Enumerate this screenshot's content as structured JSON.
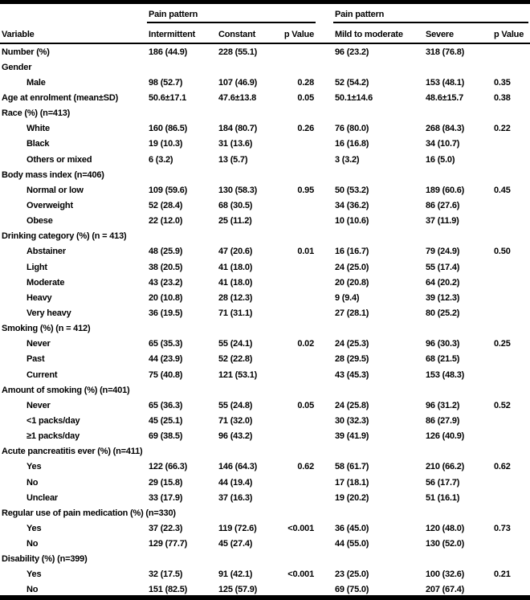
{
  "table": {
    "header": {
      "variable": "Variable",
      "group1": "Pain pattern",
      "group2": "Pain pattern",
      "columns": [
        "Intermittent",
        "Constant",
        "p Value",
        "Mild to moderate",
        "Severe",
        "p Value"
      ]
    },
    "rows": [
      {
        "label": "Number (%)",
        "indent": 0,
        "cells": [
          "186 (44.9)",
          "228 (55.1)",
          "",
          "96 (23.2)",
          "318 (76.8)",
          ""
        ]
      },
      {
        "label": "Gender",
        "indent": 0,
        "section": true,
        "cells": [
          "",
          "",
          "",
          "",
          "",
          ""
        ]
      },
      {
        "label": "Male",
        "indent": 1,
        "cells": [
          "98 (52.7)",
          "107 (46.9)",
          "0.28",
          "52 (54.2)",
          "153 (48.1)",
          "0.35"
        ]
      },
      {
        "label": "Age at enrolment (mean±SD)",
        "indent": 0,
        "cells": [
          "50.6±17.1",
          "47.6±13.8",
          "0.05",
          "50.1±14.6",
          "48.6±15.7",
          "0.38"
        ]
      },
      {
        "label": "Race (%) (n=413)",
        "indent": 0,
        "section": true,
        "cells": [
          "",
          "",
          "",
          "",
          "",
          ""
        ]
      },
      {
        "label": "White",
        "indent": 1,
        "cells": [
          "160 (86.5)",
          "184 (80.7)",
          "0.26",
          "76 (80.0)",
          "268 (84.3)",
          "0.22"
        ]
      },
      {
        "label": "Black",
        "indent": 1,
        "cells": [
          "19 (10.3)",
          "31 (13.6)",
          "",
          "16 (16.8)",
          "34 (10.7)",
          ""
        ]
      },
      {
        "label": "Others or mixed",
        "indent": 1,
        "cells": [
          "6 (3.2)",
          "13 (5.7)",
          "",
          "3 (3.2)",
          "16 (5.0)",
          ""
        ]
      },
      {
        "label": "Body mass index (n=406)",
        "indent": 0,
        "section": true,
        "cells": [
          "",
          "",
          "",
          "",
          "",
          ""
        ]
      },
      {
        "label": "Normal or low",
        "indent": 1,
        "cells": [
          "109 (59.6)",
          "130 (58.3)",
          "0.95",
          "50 (53.2)",
          "189 (60.6)",
          "0.45"
        ]
      },
      {
        "label": "Overweight",
        "indent": 1,
        "cells": [
          "52 (28.4)",
          "68 (30.5)",
          "",
          "34 (36.2)",
          "86 (27.6)",
          ""
        ]
      },
      {
        "label": "Obese",
        "indent": 1,
        "cells": [
          "22 (12.0)",
          "25 (11.2)",
          "",
          "10 (10.6)",
          "37 (11.9)",
          ""
        ]
      },
      {
        "label": "Drinking category (%) (n = 413)",
        "indent": 0,
        "section": true,
        "cells": [
          "",
          "",
          "",
          "",
          "",
          ""
        ]
      },
      {
        "label": "Abstainer",
        "indent": 1,
        "cells": [
          "48 (25.9)",
          "47 (20.6)",
          "0.01",
          "16 (16.7)",
          "79 (24.9)",
          "0.50"
        ]
      },
      {
        "label": "Light",
        "indent": 1,
        "cells": [
          "38 (20.5)",
          "41 (18.0)",
          "",
          "24 (25.0)",
          "55 (17.4)",
          ""
        ]
      },
      {
        "label": "Moderate",
        "indent": 1,
        "cells": [
          "43 (23.2)",
          "41 (18.0)",
          "",
          "20 (20.8)",
          "64 (20.2)",
          ""
        ]
      },
      {
        "label": "Heavy",
        "indent": 1,
        "cells": [
          "20 (10.8)",
          "28 (12.3)",
          "",
          "9 (9.4)",
          "39 (12.3)",
          ""
        ]
      },
      {
        "label": "Very heavy",
        "indent": 1,
        "cells": [
          "36 (19.5)",
          "71 (31.1)",
          "",
          "27 (28.1)",
          "80 (25.2)",
          ""
        ]
      },
      {
        "label": "Smoking (%) (n = 412)",
        "indent": 0,
        "section": true,
        "cells": [
          "",
          "",
          "",
          "",
          "",
          ""
        ]
      },
      {
        "label": "Never",
        "indent": 1,
        "cells": [
          "65 (35.3)",
          "55 (24.1)",
          "0.02",
          "24 (25.3)",
          "96 (30.3)",
          "0.25"
        ]
      },
      {
        "label": "Past",
        "indent": 1,
        "cells": [
          "44 (23.9)",
          "52 (22.8)",
          "",
          "28 (29.5)",
          "68 (21.5)",
          ""
        ]
      },
      {
        "label": "Current",
        "indent": 1,
        "cells": [
          "75 (40.8)",
          "121 (53.1)",
          "",
          "43 (45.3)",
          "153 (48.3)",
          ""
        ]
      },
      {
        "label": "Amount of smoking (%) (n=401)",
        "indent": 0,
        "section": true,
        "cells": [
          "",
          "",
          "",
          "",
          "",
          ""
        ]
      },
      {
        "label": "Never",
        "indent": 1,
        "cells": [
          "65 (36.3)",
          "55 (24.8)",
          "0.05",
          "24 (25.8)",
          "96 (31.2)",
          "0.52"
        ]
      },
      {
        "label": "<1 packs/day",
        "indent": 1,
        "cells": [
          "45 (25.1)",
          "71 (32.0)",
          "",
          "30 (32.3)",
          "86 (27.9)",
          ""
        ]
      },
      {
        "label": "≥1 packs/day",
        "indent": 1,
        "cells": [
          "69 (38.5)",
          "96 (43.2)",
          "",
          "39 (41.9)",
          "126 (40.9)",
          ""
        ]
      },
      {
        "label": "Acute pancreatitis ever (%) (n=411)",
        "indent": 0,
        "section": true,
        "cells": [
          "",
          "",
          "",
          "",
          "",
          ""
        ]
      },
      {
        "label": "Yes",
        "indent": 1,
        "cells": [
          "122 (66.3)",
          "146 (64.3)",
          "0.62",
          "58 (61.7)",
          "210 (66.2)",
          "0.62"
        ]
      },
      {
        "label": "No",
        "indent": 1,
        "cells": [
          "29 (15.8)",
          "44 (19.4)",
          "",
          "17 (18.1)",
          "56 (17.7)",
          ""
        ]
      },
      {
        "label": "Unclear",
        "indent": 1,
        "cells": [
          "33 (17.9)",
          "37 (16.3)",
          "",
          "19 (20.2)",
          "51 (16.1)",
          ""
        ]
      },
      {
        "label": "Regular use of pain medication (%) (n=330)",
        "indent": 0,
        "section": true,
        "cells": [
          "",
          "",
          "",
          "",
          "",
          ""
        ]
      },
      {
        "label": "Yes",
        "indent": 1,
        "cells": [
          "37 (22.3)",
          "119 (72.6)",
          "<0.001",
          "36 (45.0)",
          "120 (48.0)",
          "0.73"
        ]
      },
      {
        "label": "No",
        "indent": 1,
        "cells": [
          "129 (77.7)",
          "45 (27.4)",
          "",
          "44 (55.0)",
          "130 (52.0)",
          ""
        ]
      },
      {
        "label": "Disability (%) (n=399)",
        "indent": 0,
        "section": true,
        "cells": [
          "",
          "",
          "",
          "",
          "",
          ""
        ]
      },
      {
        "label": "Yes",
        "indent": 1,
        "cells": [
          "32 (17.5)",
          "91 (42.1)",
          "<0.001",
          "23 (25.0)",
          "100 (32.6)",
          "0.21"
        ]
      },
      {
        "label": "No",
        "indent": 1,
        "cells": [
          "151 (82.5)",
          "125 (57.9)",
          "",
          "69 (75.0)",
          "207 (67.4)",
          ""
        ]
      }
    ]
  },
  "colors": {
    "text": "#000000",
    "background": "#ffffff",
    "rule": "#000000"
  }
}
